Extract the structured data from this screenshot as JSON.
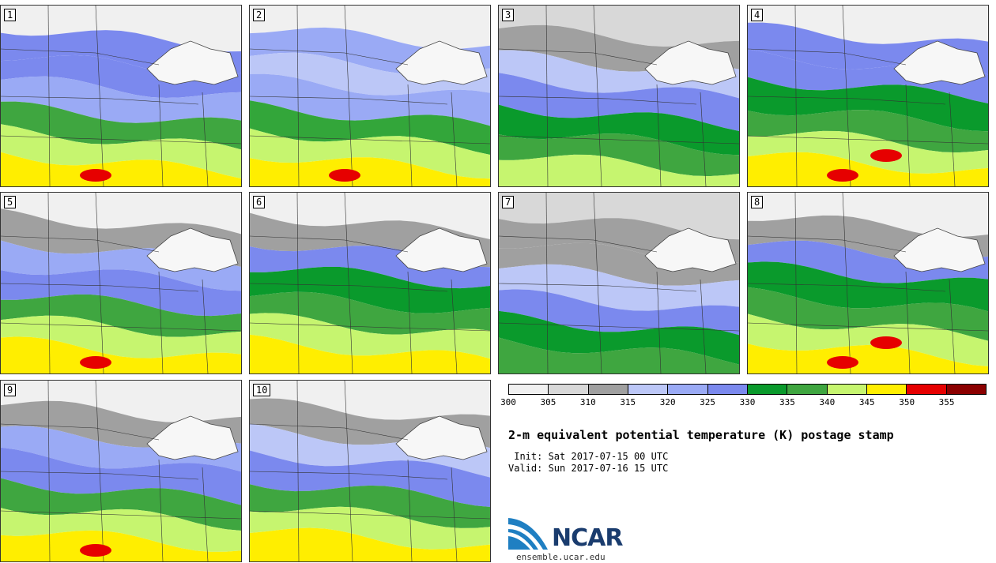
{
  "panels": [
    {
      "label": "1",
      "bands": [
        "#f0f0f0",
        "#7b89ee",
        "#7b89ee",
        "#9aaaf5",
        "#3fa640",
        "#c6f56f",
        "#ffee00"
      ],
      "hot": 1
    },
    {
      "label": "2",
      "bands": [
        "#f0f0f0",
        "#9aaaf5",
        "#bcc7f7",
        "#9aaaf5",
        "#33a63a",
        "#c6f56f",
        "#ffee00"
      ],
      "hot": 1
    },
    {
      "label": "3",
      "bands": [
        "#d8d8d8",
        "#a0a0a0",
        "#bcc7f7",
        "#7b89ee",
        "#0a9a2c",
        "#3fa640",
        "#c6f56f"
      ],
      "hot": 0
    },
    {
      "label": "4",
      "bands": [
        "#f0f0f0",
        "#7b89ee",
        "#7b89ee",
        "#0a9a2c",
        "#3fa640",
        "#c6f56f",
        "#ffee00"
      ],
      "hot": 2
    },
    {
      "label": "5",
      "bands": [
        "#f0f0f0",
        "#a0a0a0",
        "#9aaaf5",
        "#7b89ee",
        "#3fa640",
        "#c6f56f",
        "#ffee00"
      ],
      "hot": 1
    },
    {
      "label": "6",
      "bands": [
        "#f0f0f0",
        "#a0a0a0",
        "#7b89ee",
        "#0a9a2c",
        "#3fa640",
        "#c6f56f",
        "#ffee00"
      ],
      "hot": 0
    },
    {
      "label": "7",
      "bands": [
        "#d8d8d8",
        "#a0a0a0",
        "#a0a0a0",
        "#bcc7f7",
        "#7b89ee",
        "#0a9a2c",
        "#3fa640"
      ],
      "hot": 0
    },
    {
      "label": "8",
      "bands": [
        "#f0f0f0",
        "#a0a0a0",
        "#7b89ee",
        "#0a9a2c",
        "#3fa640",
        "#c6f56f",
        "#ffee00"
      ],
      "hot": 2
    },
    {
      "label": "9",
      "bands": [
        "#f0f0f0",
        "#a0a0a0",
        "#9aaaf5",
        "#7b89ee",
        "#3fa640",
        "#c6f56f",
        "#ffee00"
      ],
      "hot": 1
    },
    {
      "label": "10",
      "bands": [
        "#f0f0f0",
        "#a0a0a0",
        "#bcc7f7",
        "#7b89ee",
        "#3fa640",
        "#c6f56f",
        "#ffee00"
      ],
      "hot": 0
    }
  ],
  "colorbar": {
    "colors": [
      "#f0f0f0",
      "#d8d8d8",
      "#a0a0a0",
      "#bcc7f7",
      "#9aaaf5",
      "#7b89ee",
      "#0a9a2c",
      "#3fa640",
      "#c6f56f",
      "#ffee00",
      "#e60000",
      "#8b0000"
    ],
    "ticks": [
      "300",
      "305",
      "310",
      "315",
      "320",
      "325",
      "330",
      "335",
      "340",
      "345",
      "350",
      "355"
    ]
  },
  "title": "2-m equivalent potential temperature (K) postage stamp",
  "init": " Init: Sat 2017-07-15 00 UTC",
  "valid": "Valid: Sun 2017-07-16 15 UTC",
  "logo_text": "NCAR",
  "site": "ensemble.ucar.edu"
}
